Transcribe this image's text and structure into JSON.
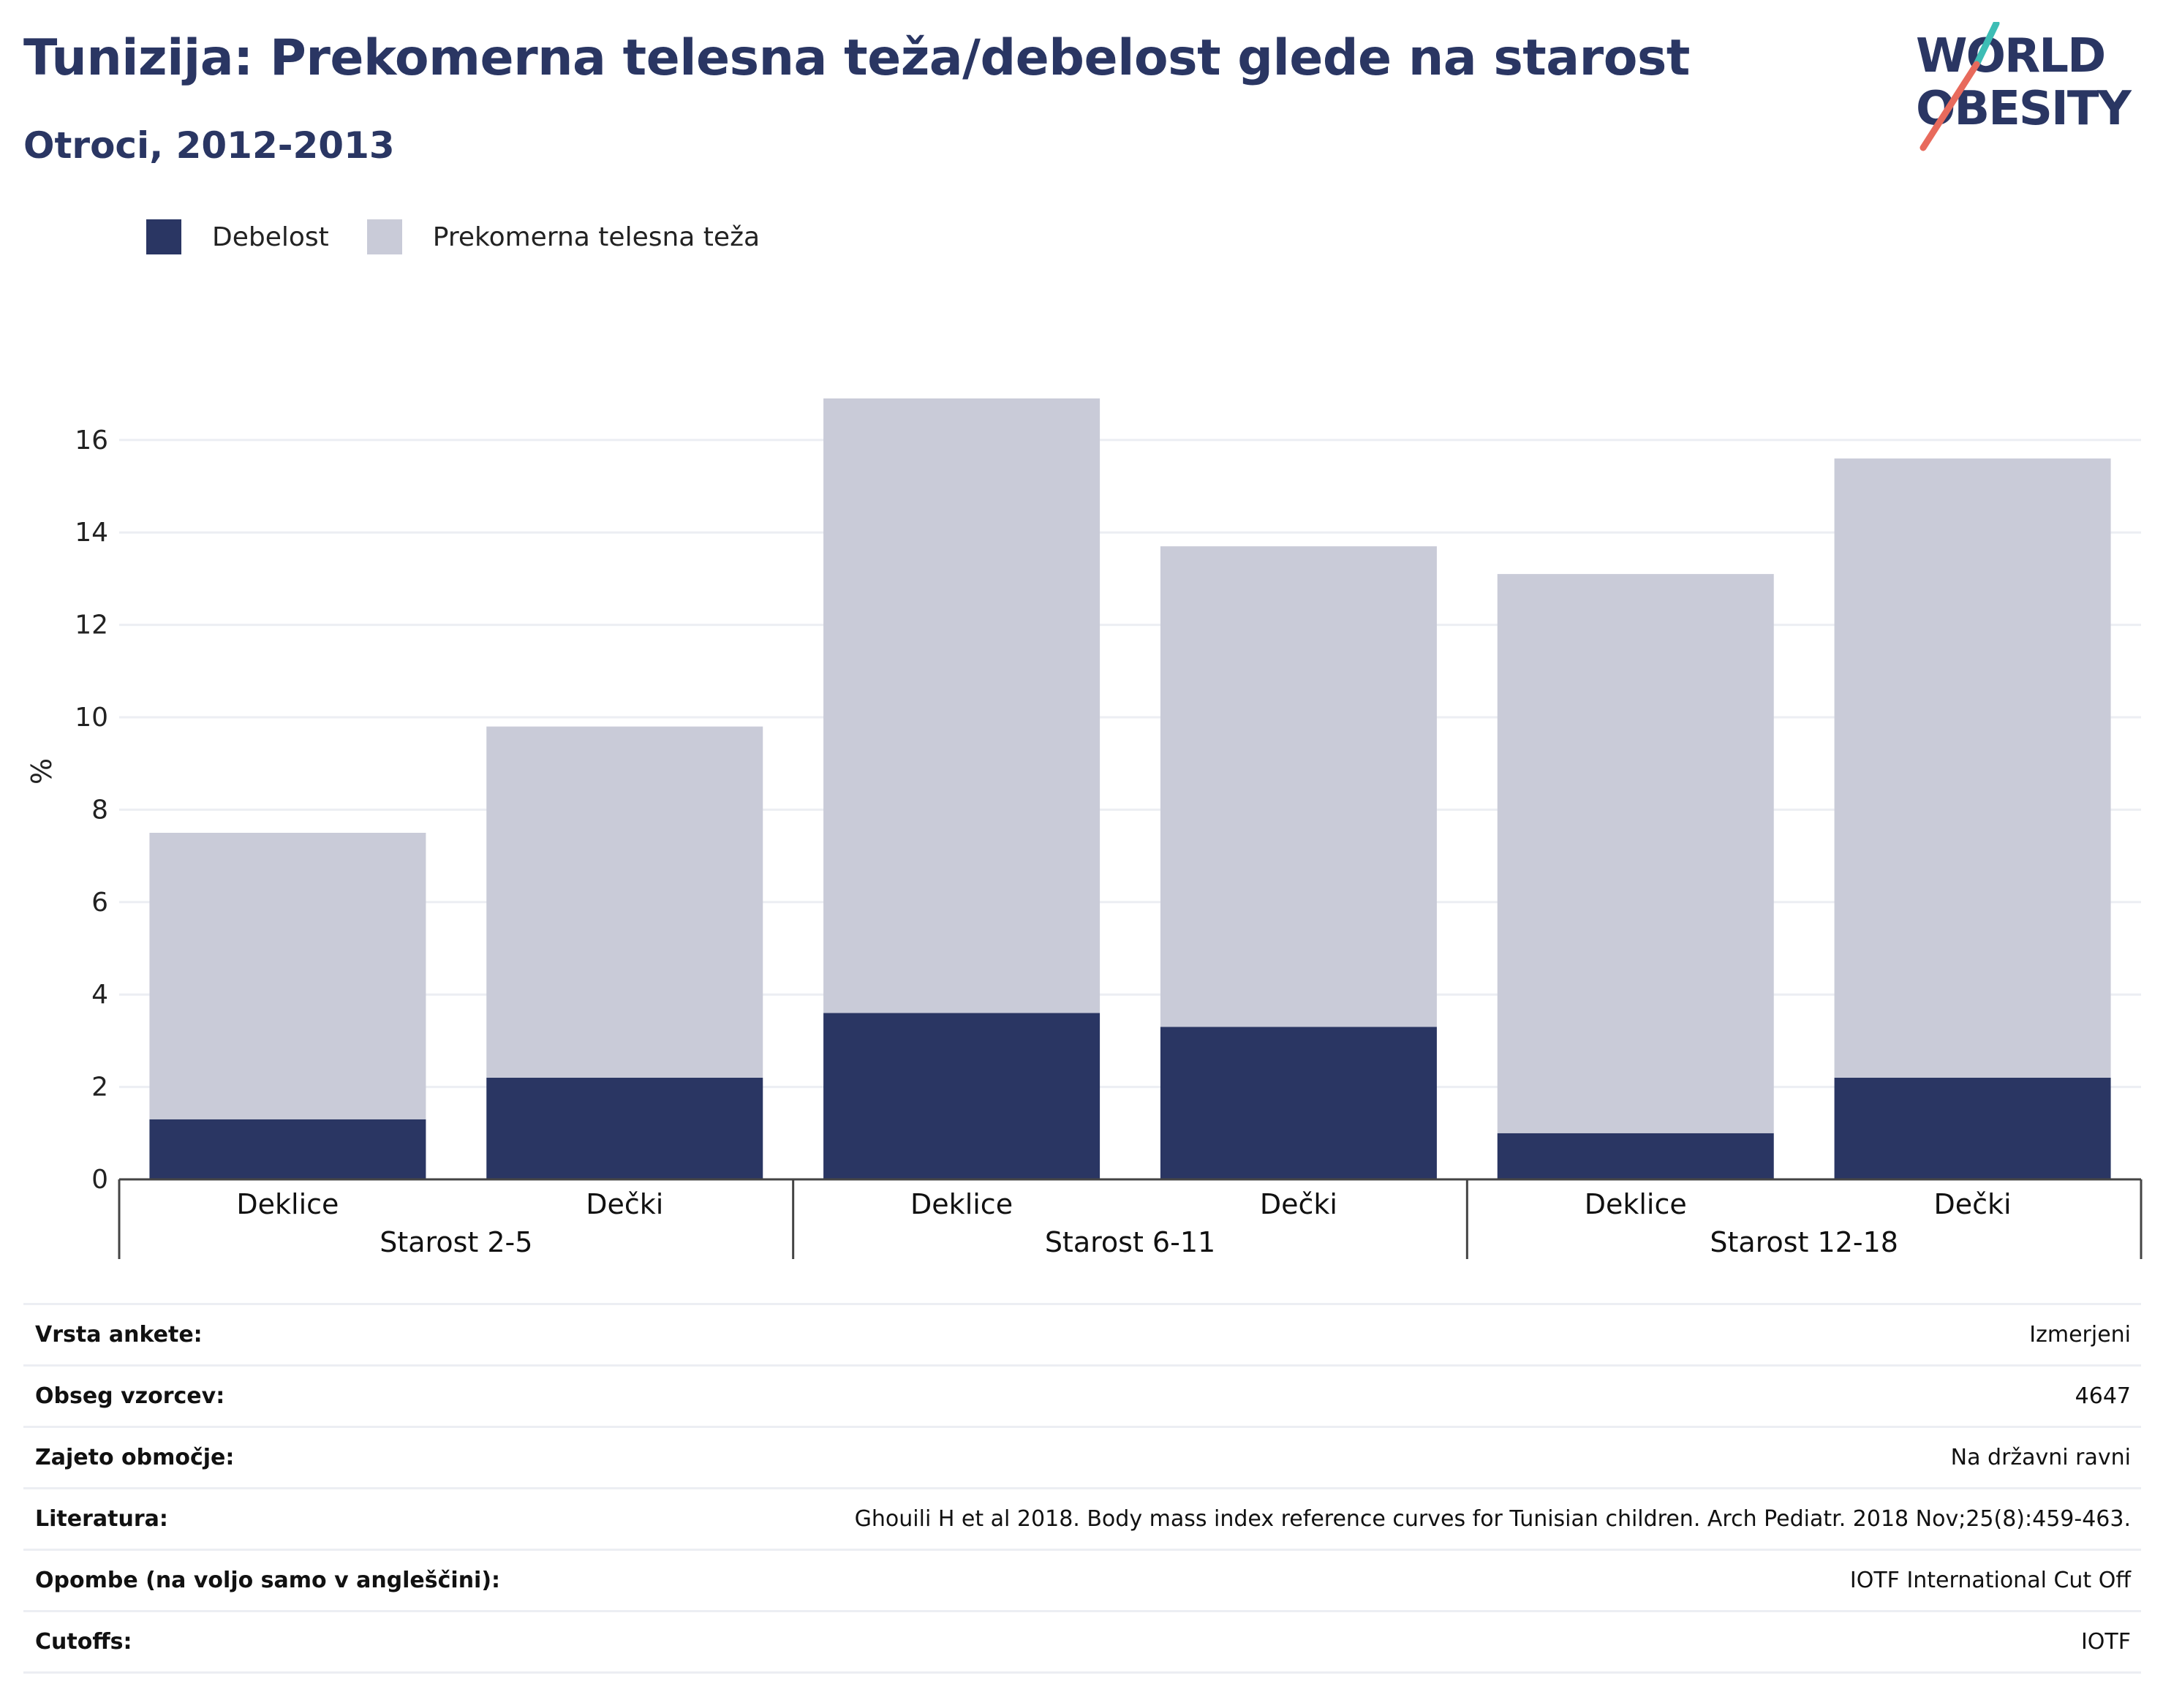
{
  "header": {
    "title": "Tunizija: Prekomerna telesna teža/debelost glede na starost",
    "subtitle": "Otroci, 2012-2013"
  },
  "logo": {
    "line1": "WORLD",
    "line2": "OBESITY"
  },
  "colors": {
    "title": "#2a3663",
    "obesity": "#2a3663",
    "overweight": "#c9cbd8",
    "accent_teal": "#3dbdb5",
    "accent_red": "#e86a5c",
    "grid": "#eceef3"
  },
  "chart_data": {
    "type": "bar",
    "stacked": true,
    "ylabel": "%",
    "ylim": [
      0,
      17
    ],
    "yticks": [
      0,
      2,
      4,
      6,
      8,
      10,
      12,
      14,
      16
    ],
    "grid": true,
    "legend_position": "top-left",
    "groups": [
      "Starost 2-5",
      "Starost 6-11",
      "Starost 12-18"
    ],
    "categories": [
      "Deklice",
      "Dečki",
      "Deklice",
      "Dečki",
      "Deklice",
      "Dečki"
    ],
    "series": [
      {
        "name": "Debelost",
        "values": [
          1.3,
          2.2,
          3.6,
          3.3,
          1.0,
          2.2
        ]
      },
      {
        "name": "Prekomerna telesna teža",
        "values": [
          6.2,
          7.6,
          13.3,
          10.4,
          12.1,
          13.4
        ]
      }
    ],
    "totals": [
      7.5,
      9.8,
      16.9,
      13.7,
      13.1,
      15.6
    ]
  },
  "info": [
    {
      "label": "Vrsta ankete:",
      "value": "Izmerjeni"
    },
    {
      "label": "Obseg vzorcev:",
      "value": "4647"
    },
    {
      "label": "Zajeto območje:",
      "value": "Na državni ravni"
    },
    {
      "label": "Literatura:",
      "value": "Ghouili H et al 2018. Body mass index reference curves for Tunisian children. Arch Pediatr. 2018 Nov;25(8):459-463."
    },
    {
      "label": "Opombe (na voljo samo v angleščini):",
      "value": "IOTF International Cut Off"
    },
    {
      "label": "Cutoffs:",
      "value": "IOTF"
    }
  ]
}
